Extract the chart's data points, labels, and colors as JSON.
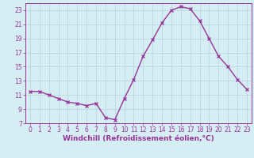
{
  "x": [
    0,
    1,
    2,
    3,
    4,
    5,
    6,
    7,
    8,
    9,
    10,
    11,
    12,
    13,
    14,
    15,
    16,
    17,
    18,
    19,
    20,
    21,
    22,
    23
  ],
  "y": [
    11.5,
    11.5,
    11.0,
    10.5,
    10.0,
    9.8,
    9.5,
    9.8,
    7.8,
    7.5,
    10.5,
    13.2,
    16.5,
    18.8,
    21.2,
    23.0,
    23.5,
    23.2,
    21.5,
    19.0,
    16.5,
    15.0,
    13.2,
    11.8
  ],
  "line_color": "#993399",
  "marker": "x",
  "marker_size": 3,
  "linewidth": 1.0,
  "xlabel": "Windchill (Refroidissement éolien,°C)",
  "xlabel_fontsize": 6.5,
  "bg_color": "#d4eef4",
  "grid_color": "#b8d8e0",
  "tick_color": "#993399",
  "label_color": "#993399",
  "xlim": [
    -0.5,
    23.5
  ],
  "ylim": [
    7,
    24
  ],
  "yticks": [
    7,
    9,
    11,
    13,
    15,
    17,
    19,
    21,
    23
  ],
  "xticks": [
    0,
    1,
    2,
    3,
    4,
    5,
    6,
    7,
    8,
    9,
    10,
    11,
    12,
    13,
    14,
    15,
    16,
    17,
    18,
    19,
    20,
    21,
    22,
    23
  ],
  "tick_fontsize": 5.5
}
